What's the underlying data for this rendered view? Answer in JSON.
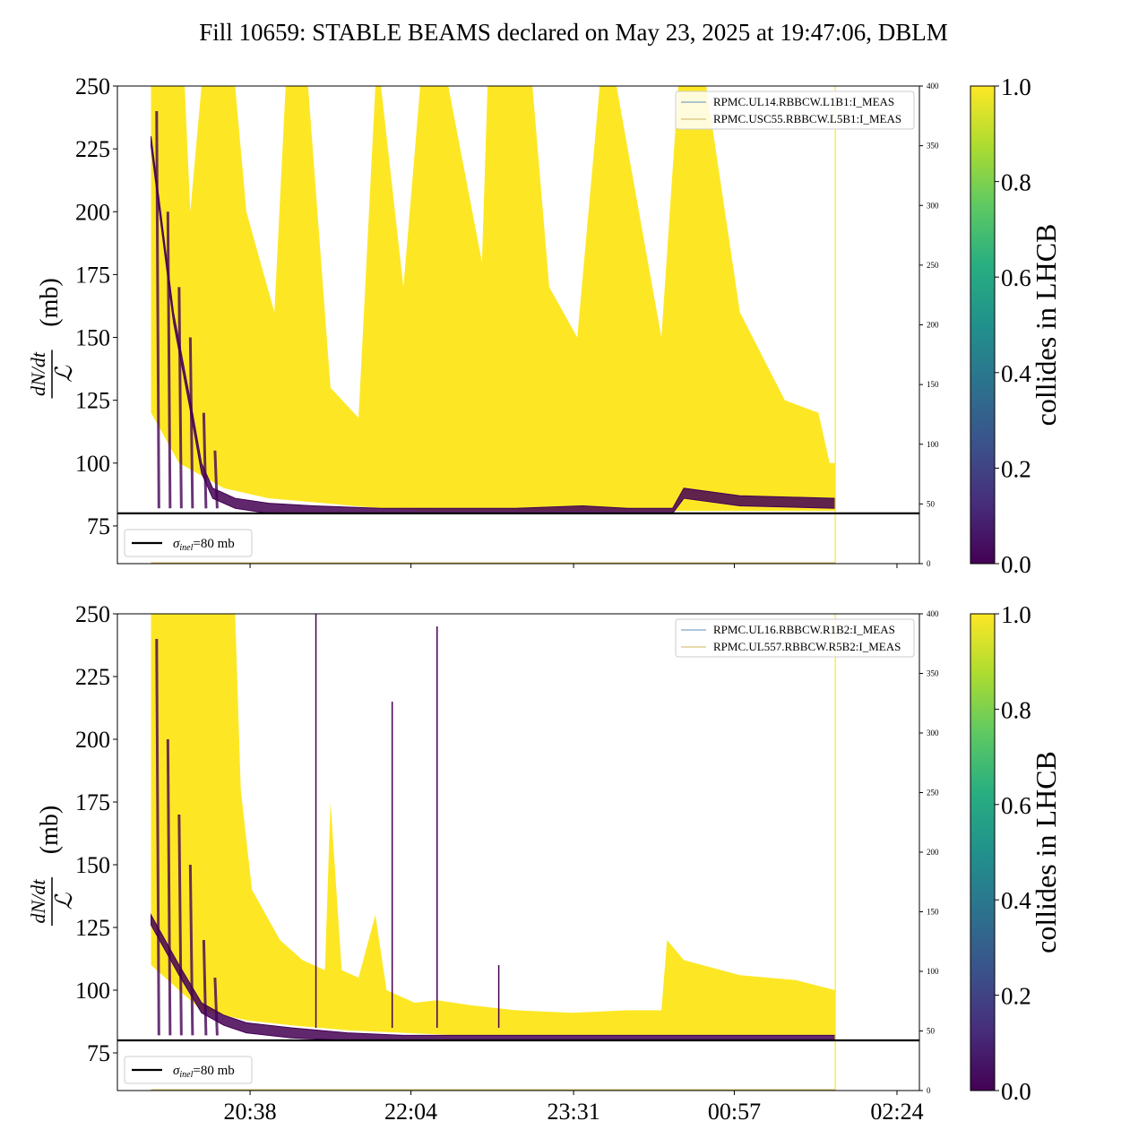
{
  "title": "Fill 10659: STABLE BEAMS declared on May 23, 2025 at 19:47:06, DBLM",
  "colors": {
    "yellow": "#fde725",
    "purple": "#440154",
    "ref_line": "#000000",
    "legend_line_1": "#5b8db8",
    "legend_line_2": "#d2b55b"
  },
  "x_axis": {
    "tick_labels": [
      "20:38",
      "22:04",
      "23:31",
      "00:57",
      "02:24"
    ],
    "tick_hours": [
      20.633,
      22.067,
      23.517,
      24.95,
      26.4
    ],
    "range_hours": [
      19.45,
      26.6
    ]
  },
  "colorbar": {
    "label": "collides in LHCB",
    "ticks": [
      "0.0",
      "0.2",
      "0.4",
      "0.6",
      "0.8",
      "1.0"
    ],
    "range": [
      0,
      1
    ],
    "colormap": "viridis"
  },
  "chart_data": [
    {
      "type": "line",
      "panel": "top",
      "ylabel_math": "dN/dt / L",
      "ylabel_unit": "(mb)",
      "ylim": [
        60,
        250
      ],
      "y_ticks": [
        75,
        100,
        125,
        150,
        175,
        200,
        225,
        250
      ],
      "y2lim": [
        0,
        400
      ],
      "y2_ticks": [
        0,
        50,
        100,
        150,
        200,
        250,
        300,
        350,
        400
      ],
      "reference_line": {
        "value": 80,
        "label_sym": "σ",
        "label_sub": "inel",
        "label_val": "=80 mb"
      },
      "legend": [
        "RPMC.UL14.RBBCW.L1B1:I_MEAS",
        "RPMC.USC55.RBBCW.L5B1:I_MEAS"
      ],
      "envelope_yellow": [
        [
          19.75,
          250
        ],
        [
          20.05,
          250
        ],
        [
          20.1,
          200
        ],
        [
          20.2,
          250
        ],
        [
          20.5,
          250
        ],
        [
          20.6,
          200
        ],
        [
          20.85,
          160
        ],
        [
          20.95,
          250
        ],
        [
          21.15,
          250
        ],
        [
          21.35,
          130
        ],
        [
          21.6,
          118
        ],
        [
          21.75,
          250
        ],
        [
          21.8,
          250
        ],
        [
          22.0,
          170
        ],
        [
          22.15,
          250
        ],
        [
          22.4,
          250
        ],
        [
          22.7,
          180
        ],
        [
          22.75,
          250
        ],
        [
          23.15,
          250
        ],
        [
          23.3,
          170
        ],
        [
          23.55,
          150
        ],
        [
          23.75,
          250
        ],
        [
          23.9,
          250
        ],
        [
          24.1,
          200
        ],
        [
          24.3,
          150
        ],
        [
          24.45,
          250
        ],
        [
          24.7,
          250
        ],
        [
          25.0,
          160
        ],
        [
          25.4,
          125
        ],
        [
          25.7,
          120
        ],
        [
          25.8,
          100
        ],
        [
          25.85,
          100
        ]
      ],
      "baseline_yellow": [
        [
          19.75,
          120
        ],
        [
          20.0,
          100
        ],
        [
          20.4,
          90
        ],
        [
          20.8,
          86
        ],
        [
          21.3,
          84
        ],
        [
          21.8,
          82
        ],
        [
          22.2,
          81
        ],
        [
          23.0,
          81
        ],
        [
          23.6,
          81
        ],
        [
          24.5,
          81
        ],
        [
          25.85,
          81
        ]
      ],
      "core_purple": [
        [
          19.75,
          230
        ],
        [
          19.95,
          160
        ],
        [
          20.1,
          125
        ],
        [
          20.2,
          100
        ],
        [
          20.3,
          90
        ],
        [
          20.5,
          86
        ],
        [
          20.8,
          84
        ],
        [
          21.2,
          83
        ],
        [
          21.8,
          82
        ],
        [
          22.5,
          82
        ],
        [
          23.0,
          82
        ],
        [
          23.6,
          83
        ],
        [
          24.0,
          82
        ],
        [
          24.4,
          82
        ],
        [
          24.5,
          90
        ],
        [
          25.0,
          87
        ],
        [
          25.85,
          86
        ]
      ],
      "end_hour": 25.85
    },
    {
      "type": "line",
      "panel": "bottom",
      "ylabel_math": "dN/dt / L",
      "ylabel_unit": "(mb)",
      "ylim": [
        60,
        250
      ],
      "y_ticks": [
        75,
        100,
        125,
        150,
        175,
        200,
        225,
        250
      ],
      "y2lim": [
        0,
        400
      ],
      "y2_ticks": [
        0,
        50,
        100,
        150,
        200,
        250,
        300,
        350,
        400
      ],
      "reference_line": {
        "value": 80,
        "label_sym": "σ",
        "label_sub": "inel",
        "label_val": "=80 mb"
      },
      "legend": [
        "RPMC.UL16.RBBCW.R1B2:I_MEAS",
        "RPMC.UL557.RBBCW.R5B2:I_MEAS"
      ],
      "envelope_yellow": [
        [
          19.75,
          250
        ],
        [
          20.5,
          250
        ],
        [
          20.55,
          180
        ],
        [
          20.65,
          140
        ],
        [
          20.9,
          120
        ],
        [
          21.1,
          112
        ],
        [
          21.3,
          108
        ],
        [
          21.35,
          175
        ],
        [
          21.45,
          108
        ],
        [
          21.6,
          105
        ],
        [
          21.75,
          130
        ],
        [
          21.85,
          100
        ],
        [
          22.1,
          95
        ],
        [
          22.3,
          96
        ],
        [
          22.6,
          94
        ],
        [
          23.0,
          92
        ],
        [
          23.5,
          91
        ],
        [
          24.0,
          92
        ],
        [
          24.3,
          92
        ],
        [
          24.35,
          120
        ],
        [
          24.5,
          112
        ],
        [
          25.0,
          106
        ],
        [
          25.5,
          104
        ],
        [
          25.85,
          100
        ]
      ],
      "baseline_yellow": [
        [
          19.75,
          110
        ],
        [
          20.2,
          92
        ],
        [
          20.6,
          88
        ],
        [
          21.0,
          86
        ],
        [
          21.5,
          84
        ],
        [
          22.0,
          83
        ],
        [
          22.5,
          82
        ],
        [
          23.5,
          82
        ],
        [
          24.5,
          82
        ],
        [
          25.85,
          82
        ]
      ],
      "core_purple": [
        [
          19.75,
          130
        ],
        [
          20.0,
          110
        ],
        [
          20.2,
          95
        ],
        [
          20.4,
          90
        ],
        [
          20.6,
          87
        ],
        [
          21.0,
          85
        ],
        [
          21.5,
          83
        ],
        [
          22.0,
          82
        ],
        [
          22.5,
          82
        ],
        [
          23.5,
          82
        ],
        [
          25.85,
          82
        ]
      ],
      "spikes": [
        {
          "hour": 21.22,
          "value": 250,
          "color": "purple"
        },
        {
          "hour": 21.9,
          "value": 215,
          "color": "purple"
        },
        {
          "hour": 22.3,
          "value": 245,
          "color": "purple"
        },
        {
          "hour": 22.85,
          "value": 110,
          "color": "purple"
        }
      ],
      "end_hour": 25.85
    }
  ]
}
